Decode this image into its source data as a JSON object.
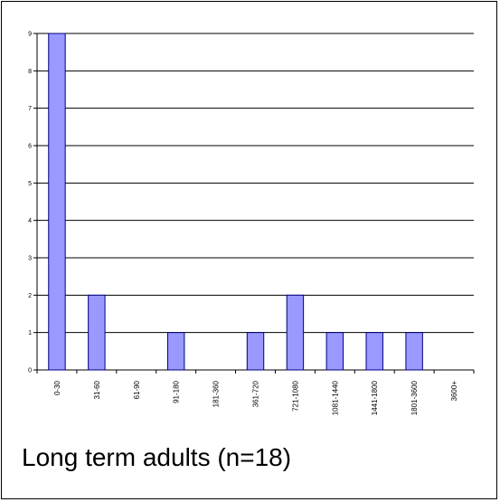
{
  "chart_data": {
    "type": "bar",
    "categories": [
      "0-30",
      "31-60",
      "61-90",
      "91-180",
      "181-360",
      "361-720",
      "721-1080",
      "1081-1440",
      "1441-1800",
      "1801-3600",
      "3600+"
    ],
    "values": [
      9,
      2,
      0,
      1,
      0,
      1,
      2,
      1,
      1,
      1,
      0
    ],
    "ylim": [
      0,
      9
    ],
    "yticks": [
      "0",
      "1",
      "2",
      "3",
      "4",
      "5",
      "6",
      "7",
      "8",
      "9"
    ],
    "grid": true,
    "bar_color": "#9999ff",
    "bar_edge_color": "#000080",
    "caption": "Long term adults (n=18)"
  }
}
